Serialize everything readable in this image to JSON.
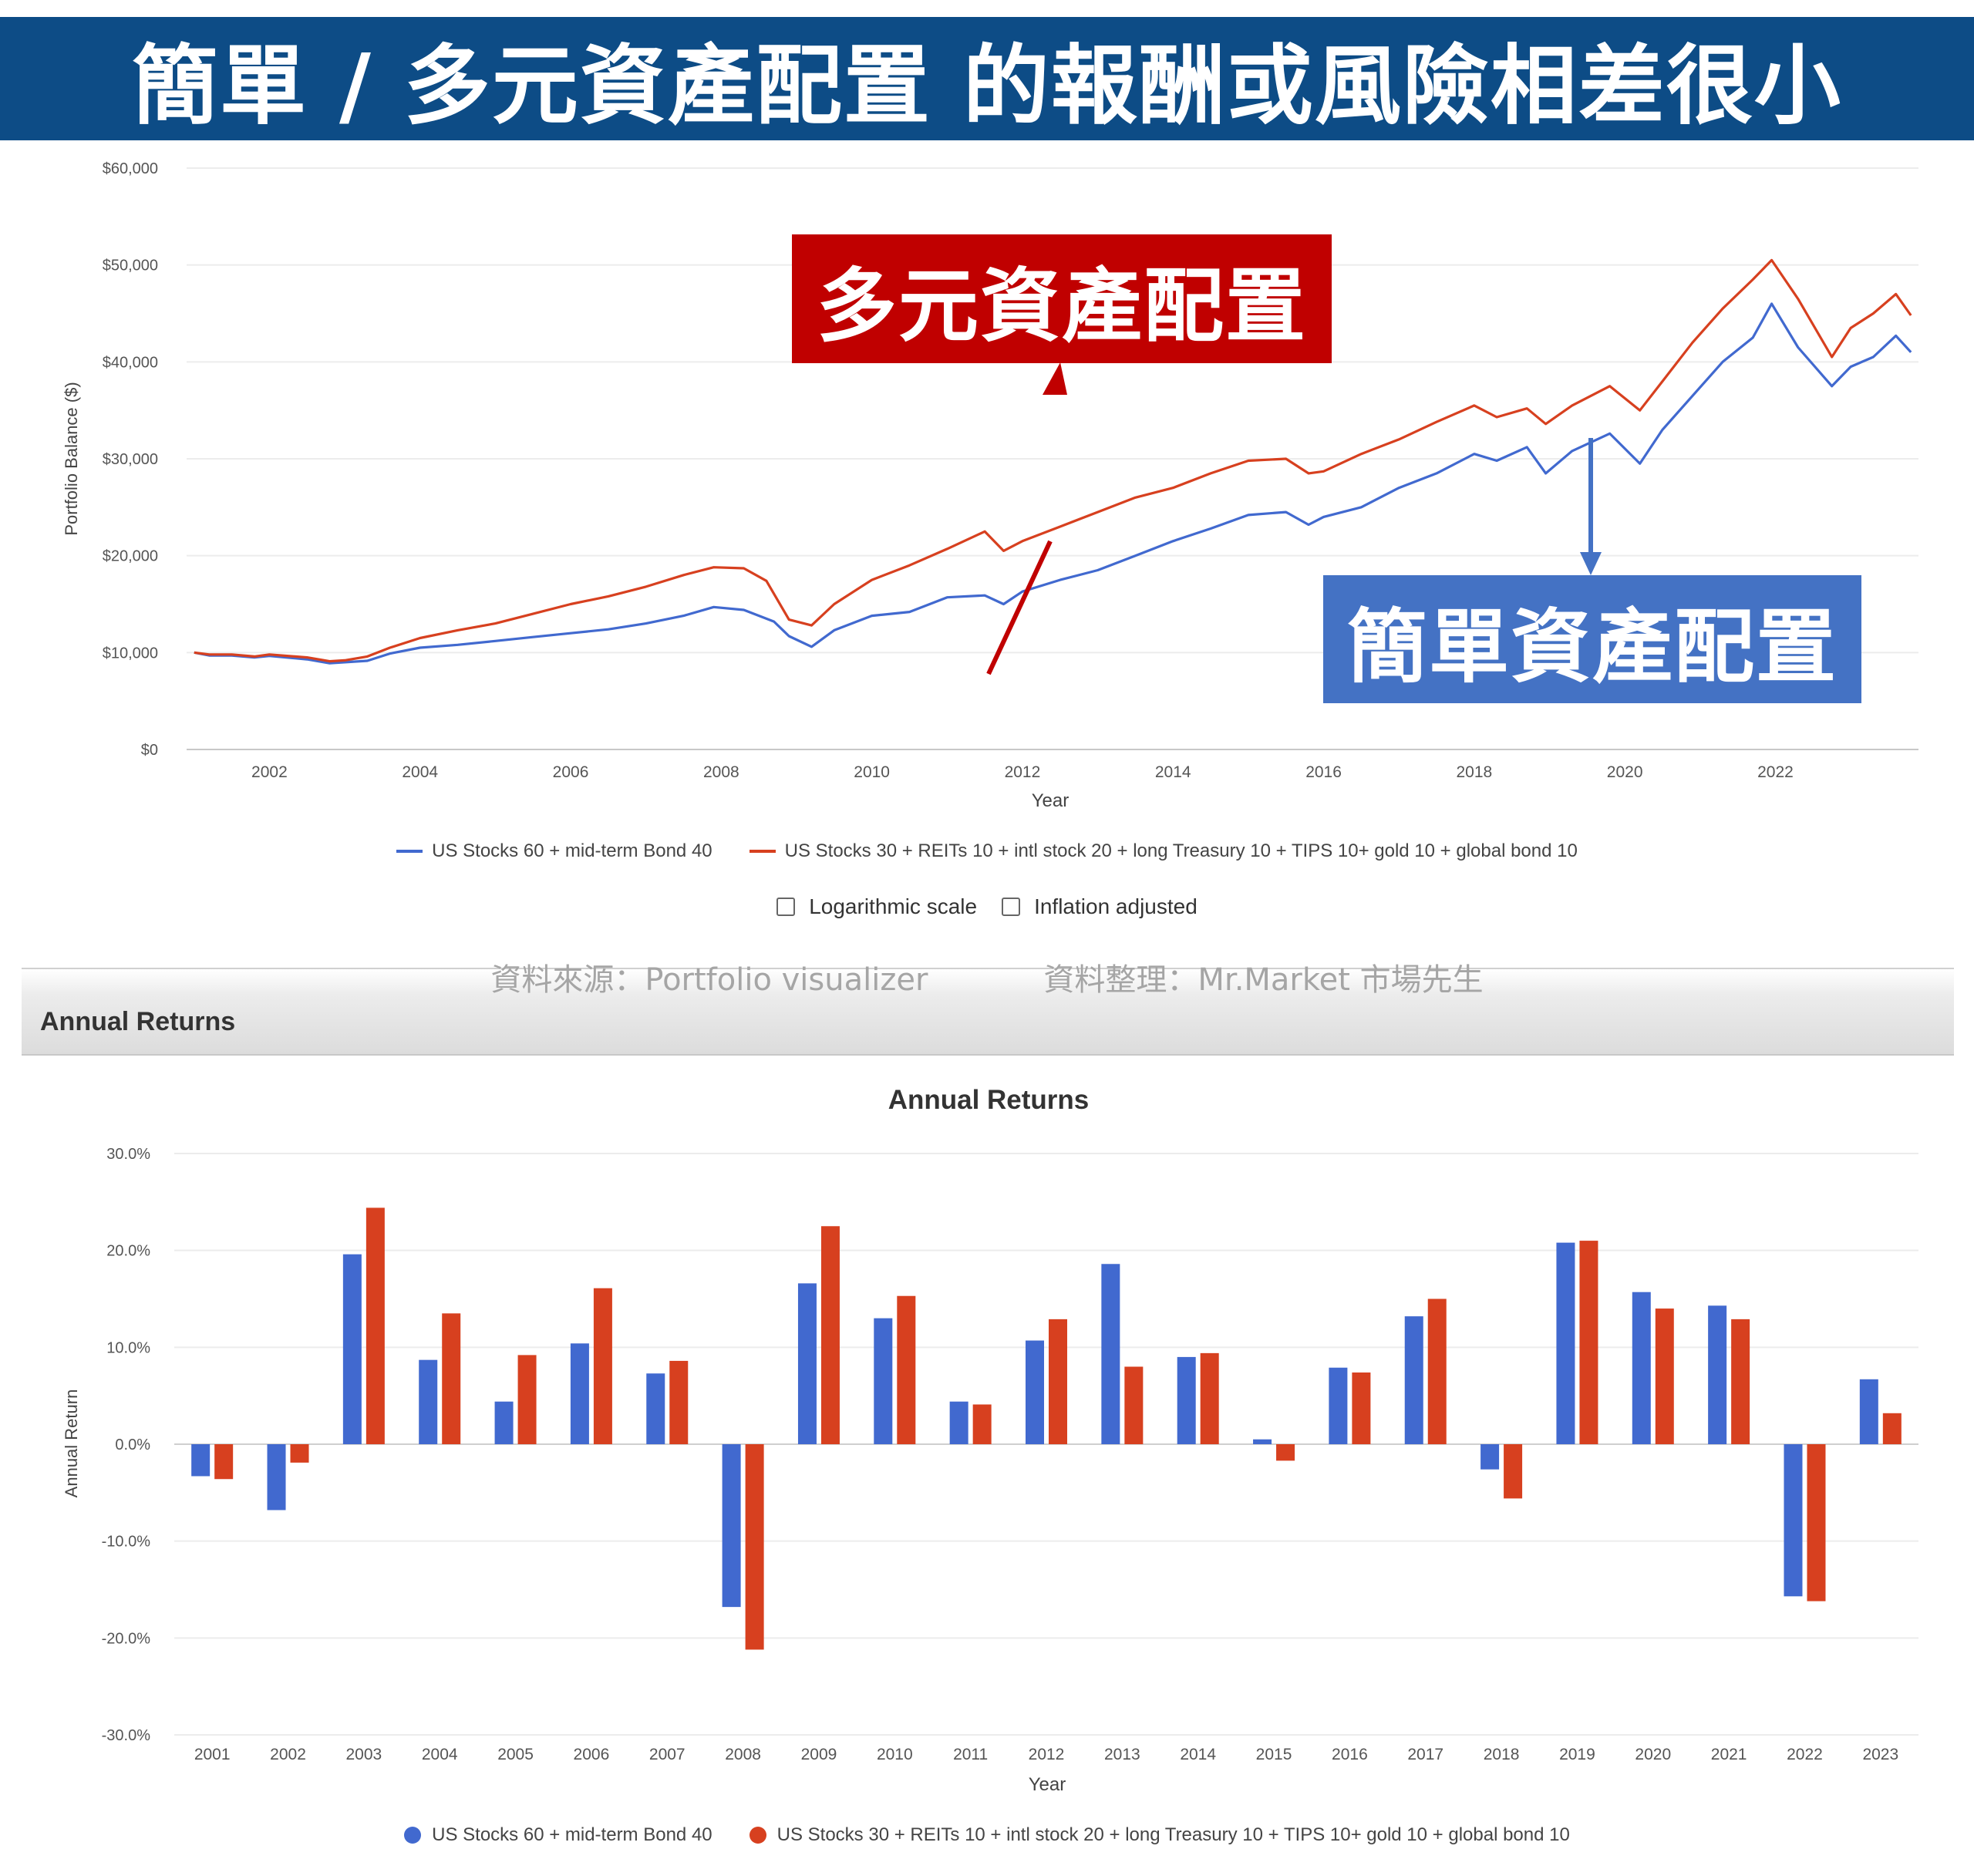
{
  "banner": {
    "title": "簡單 / 多元資產配置 的報酬或風險相差很小"
  },
  "callouts": {
    "diversified": "多元資產配置",
    "simple": "簡單資產配置"
  },
  "colors": {
    "banner_bg": "#0d4c86",
    "series1": "#4169cf",
    "series2": "#d7401f",
    "callout_red": "#c00000",
    "callout_blue": "#4472c4"
  },
  "options": {
    "log_scale": "Logarithmic scale",
    "inflation": "Inflation adjusted"
  },
  "source": {
    "source_text": "資料來源：Portfolio visualizer",
    "compiled_text": "資料整理：Mr.Market 市場先生"
  },
  "section": {
    "title": "Annual Returns"
  },
  "legend": {
    "series1": "US Stocks 60 + mid-term Bond 40",
    "series2": "US Stocks 30 + REITs 10 + intl stock 20 + long Treasury 10 + TIPS 10+ gold 10 + global bond 10"
  },
  "chart_data": [
    {
      "type": "line",
      "ylabel": "Portfolio Balance ($)",
      "xlabel": "Year",
      "ylim": [
        0,
        60000
      ],
      "xlim": [
        2000.9,
        2023.9
      ],
      "y_ticks": [
        "$0",
        "$10,000",
        "$20,000",
        "$30,000",
        "$40,000",
        "$50,000",
        "$60,000"
      ],
      "x_ticks": [
        "2002",
        "2004",
        "2006",
        "2008",
        "2010",
        "2012",
        "2014",
        "2016",
        "2018",
        "2020",
        "2022"
      ],
      "grid": true,
      "legend_position": "bottom",
      "series": [
        {
          "name": "US Stocks 60 + mid-term Bond 40",
          "color": "#4169cf",
          "points": [
            [
              2001.0,
              10000
            ],
            [
              2001.2,
              9700
            ],
            [
              2001.5,
              9700
            ],
            [
              2001.8,
              9500
            ],
            [
              2002.0,
              9650
            ],
            [
              2002.5,
              9300
            ],
            [
              2002.8,
              8900
            ],
            [
              2003.0,
              9000
            ],
            [
              2003.3,
              9150
            ],
            [
              2003.6,
              9900
            ],
            [
              2004.0,
              10500
            ],
            [
              2004.5,
              10800
            ],
            [
              2005.0,
              11200
            ],
            [
              2005.5,
              11600
            ],
            [
              2006.0,
              12000
            ],
            [
              2006.5,
              12400
            ],
            [
              2007.0,
              13000
            ],
            [
              2007.5,
              13800
            ],
            [
              2007.9,
              14700
            ],
            [
              2008.3,
              14400
            ],
            [
              2008.7,
              13200
            ],
            [
              2008.9,
              11700
            ],
            [
              2009.2,
              10600
            ],
            [
              2009.5,
              12300
            ],
            [
              2010.0,
              13800
            ],
            [
              2010.5,
              14200
            ],
            [
              2011.0,
              15700
            ],
            [
              2011.5,
              15900
            ],
            [
              2011.75,
              15000
            ],
            [
              2012.0,
              16300
            ],
            [
              2012.5,
              17500
            ],
            [
              2013.0,
              18500
            ],
            [
              2013.5,
              20000
            ],
            [
              2014.0,
              21500
            ],
            [
              2014.5,
              22800
            ],
            [
              2015.0,
              24200
            ],
            [
              2015.5,
              24500
            ],
            [
              2015.8,
              23200
            ],
            [
              2016.0,
              24000
            ],
            [
              2016.5,
              25000
            ],
            [
              2017.0,
              27000
            ],
            [
              2017.5,
              28500
            ],
            [
              2018.0,
              30500
            ],
            [
              2018.3,
              29800
            ],
            [
              2018.7,
              31200
            ],
            [
              2018.95,
              28500
            ],
            [
              2019.3,
              30800
            ],
            [
              2019.8,
              32600
            ],
            [
              2020.2,
              29500
            ],
            [
              2020.5,
              33000
            ],
            [
              2020.9,
              36500
            ],
            [
              2021.3,
              40000
            ],
            [
              2021.7,
              42500
            ],
            [
              2021.95,
              46000
            ],
            [
              2022.3,
              41500
            ],
            [
              2022.75,
              37500
            ],
            [
              2023.0,
              39500
            ],
            [
              2023.3,
              40500
            ],
            [
              2023.6,
              42700
            ],
            [
              2023.8,
              41000
            ]
          ]
        },
        {
          "name": "US Stocks 30 + REITs 10 + intl stock 20 + long Treasury 10 + TIPS 10+ gold 10 + global bond 10",
          "color": "#d7401f",
          "points": [
            [
              2001.0,
              10000
            ],
            [
              2001.2,
              9800
            ],
            [
              2001.5,
              9800
            ],
            [
              2001.8,
              9600
            ],
            [
              2002.0,
              9800
            ],
            [
              2002.5,
              9500
            ],
            [
              2002.8,
              9100
            ],
            [
              2003.0,
              9200
            ],
            [
              2003.3,
              9600
            ],
            [
              2003.6,
              10500
            ],
            [
              2004.0,
              11500
            ],
            [
              2004.5,
              12300
            ],
            [
              2005.0,
              13000
            ],
            [
              2005.5,
              14000
            ],
            [
              2006.0,
              15000
            ],
            [
              2006.5,
              15800
            ],
            [
              2007.0,
              16800
            ],
            [
              2007.5,
              18000
            ],
            [
              2007.9,
              18800
            ],
            [
              2008.3,
              18700
            ],
            [
              2008.6,
              17400
            ],
            [
              2008.9,
              13400
            ],
            [
              2009.2,
              12800
            ],
            [
              2009.5,
              15000
            ],
            [
              2010.0,
              17500
            ],
            [
              2010.5,
              19000
            ],
            [
              2011.0,
              20700
            ],
            [
              2011.5,
              22500
            ],
            [
              2011.75,
              20500
            ],
            [
              2012.0,
              21500
            ],
            [
              2012.5,
              23000
            ],
            [
              2013.0,
              24500
            ],
            [
              2013.5,
              26000
            ],
            [
              2014.0,
              27000
            ],
            [
              2014.5,
              28500
            ],
            [
              2015.0,
              29800
            ],
            [
              2015.5,
              30000
            ],
            [
              2015.8,
              28500
            ],
            [
              2016.0,
              28700
            ],
            [
              2016.5,
              30500
            ],
            [
              2017.0,
              32000
            ],
            [
              2017.5,
              33800
            ],
            [
              2018.0,
              35500
            ],
            [
              2018.3,
              34300
            ],
            [
              2018.7,
              35200
            ],
            [
              2018.95,
              33600
            ],
            [
              2019.3,
              35500
            ],
            [
              2019.8,
              37500
            ],
            [
              2020.2,
              35000
            ],
            [
              2020.5,
              38000
            ],
            [
              2020.9,
              42000
            ],
            [
              2021.3,
              45500
            ],
            [
              2021.7,
              48500
            ],
            [
              2021.95,
              50500
            ],
            [
              2022.3,
              46500
            ],
            [
              2022.75,
              40500
            ],
            [
              2023.0,
              43500
            ],
            [
              2023.3,
              45000
            ],
            [
              2023.6,
              47000
            ],
            [
              2023.8,
              44800
            ]
          ]
        }
      ]
    },
    {
      "type": "bar",
      "title": "Annual Returns",
      "ylabel": "Annual Return",
      "xlabel": "Year",
      "ylim": [
        -30,
        30
      ],
      "y_ticks": [
        "-30.0%",
        "-20.0%",
        "-10.0%",
        "0.0%",
        "10.0%",
        "20.0%",
        "30.0%"
      ],
      "grid": true,
      "legend_position": "bottom",
      "categories": [
        "2001",
        "2002",
        "2003",
        "2004",
        "2005",
        "2006",
        "2007",
        "2008",
        "2009",
        "2010",
        "2011",
        "2012",
        "2013",
        "2014",
        "2015",
        "2016",
        "2017",
        "2018",
        "2019",
        "2020",
        "2021",
        "2022",
        "2023"
      ],
      "series": [
        {
          "name": "US Stocks 60 + mid-term Bond 40",
          "color": "#4169cf",
          "values": [
            -3.3,
            -6.8,
            19.6,
            8.7,
            4.4,
            10.4,
            7.3,
            -16.8,
            16.6,
            13.0,
            4.4,
            10.7,
            18.6,
            9.0,
            0.5,
            7.9,
            13.2,
            -2.6,
            20.8,
            15.7,
            14.3,
            -15.7,
            6.7
          ]
        },
        {
          "name": "US Stocks 30 + REITs 10 + intl stock 20 + long Treasury 10 + TIPS 10+ gold 10 + global bond 10",
          "color": "#d7401f",
          "values": [
            -3.6,
            -1.9,
            24.4,
            13.5,
            9.2,
            16.1,
            8.6,
            -21.2,
            22.5,
            15.3,
            4.1,
            12.9,
            8.0,
            9.4,
            -1.7,
            7.4,
            15.0,
            -5.6,
            21.0,
            14.0,
            12.9,
            -16.2,
            3.2
          ]
        }
      ]
    }
  ]
}
